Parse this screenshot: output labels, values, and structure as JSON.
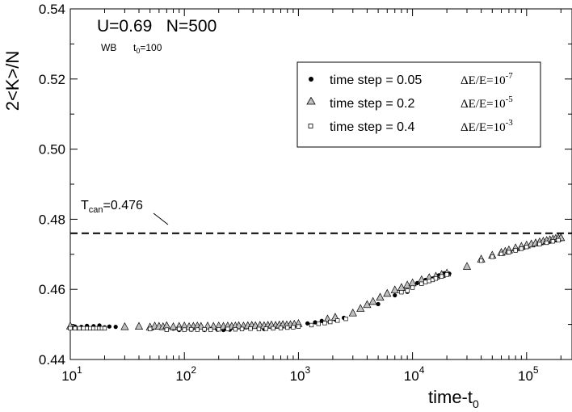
{
  "chart_data": {
    "type": "scatter",
    "xlabel": "time-t",
    "xlabel_sub": "0",
    "ylabel": "2<K>/N",
    "xscale": "log",
    "xlim": [
      10,
      250000
    ],
    "ylim": [
      0.44,
      0.54
    ],
    "x_ticks": [
      {
        "value": 10,
        "base": "10",
        "exp": "1"
      },
      {
        "value": 100,
        "base": "10",
        "exp": "2"
      },
      {
        "value": 1000,
        "base": "10",
        "exp": "3"
      },
      {
        "value": 10000,
        "base": "10",
        "exp": "4"
      },
      {
        "value": 100000,
        "base": "10",
        "exp": "5"
      }
    ],
    "y_ticks": [
      {
        "value": 0.44,
        "label": "0.44"
      },
      {
        "value": 0.46,
        "label": "0.46"
      },
      {
        "value": 0.48,
        "label": "0.48"
      },
      {
        "value": 0.5,
        "label": "0.50"
      },
      {
        "value": 0.52,
        "label": "0.52"
      },
      {
        "value": 0.54,
        "label": "0.54"
      }
    ],
    "grid": false,
    "legend_position": "top-right",
    "annotations": {
      "params": "U=0.69   N=500",
      "wb": "WB",
      "t0_base": "t",
      "t0_sub": "0",
      "t0_value": "=100",
      "tcan_base": "T",
      "tcan_sub": "can",
      "tcan_value": "=0.476"
    },
    "reference_line": {
      "y": 0.476,
      "style": "dashed"
    },
    "series": [
      {
        "name": "time step = 0.05",
        "de_base": "ΔE/E=10",
        "de_exp": "-7",
        "marker": "filled-circle",
        "color": "#000000",
        "x": [
          11,
          12.5,
          14,
          16,
          18,
          20,
          22,
          25,
          70,
          80,
          90,
          100,
          115,
          130,
          150,
          170,
          195,
          220,
          250,
          500,
          1200,
          1400,
          1600,
          1800,
          2100,
          2500,
          5000,
          7000,
          9000,
          11000,
          13000,
          15000,
          17000,
          19000,
          21000
        ],
        "y": [
          0.4494,
          0.4493,
          0.4496,
          0.4495,
          0.4497,
          0.4492,
          0.4494,
          0.4493,
          0.4485,
          0.4488,
          0.4484,
          0.4487,
          0.4485,
          0.4486,
          0.4484,
          0.4486,
          0.4485,
          0.4484,
          0.4485,
          0.4487,
          0.4503,
          0.4506,
          0.451,
          0.4511,
          0.4514,
          0.4519,
          0.4558,
          0.4583,
          0.4593,
          0.4618,
          0.4627,
          0.4631,
          0.464,
          0.4646,
          0.4645
        ]
      },
      {
        "name": "time step = 0.2",
        "de_base": "ΔE/E=10",
        "de_exp": "-5",
        "marker": "triangle",
        "color": "#a9a9a9",
        "x": [
          10,
          30,
          40,
          50,
          55,
          60,
          65,
          70,
          80,
          90,
          100,
          110,
          120,
          130,
          140,
          160,
          180,
          200,
          220,
          240,
          260,
          280,
          300,
          330,
          360,
          390,
          420,
          460,
          500,
          540,
          580,
          630,
          680,
          730,
          790,
          850,
          920,
          1000,
          1800,
          2100,
          3000,
          3500,
          4000,
          4500,
          5200,
          6000,
          7000,
          8000,
          9000,
          10000,
          12000,
          14000,
          16000,
          18000,
          20000,
          30000,
          40000,
          50000,
          60000,
          65000,
          70000,
          80000,
          90000,
          100000,
          110000,
          120000,
          130000,
          140000,
          150000,
          160000,
          170000,
          180000,
          190000,
          200000
        ],
        "y": [
          0.4495,
          0.4493,
          0.4494,
          0.4492,
          0.4495,
          0.4494,
          0.4493,
          0.4496,
          0.4493,
          0.4494,
          0.4495,
          0.4493,
          0.4494,
          0.4495,
          0.4494,
          0.4495,
          0.4494,
          0.4495,
          0.4494,
          0.4495,
          0.4494,
          0.4495,
          0.4496,
          0.4495,
          0.4496,
          0.4497,
          0.4496,
          0.4497,
          0.4496,
          0.4497,
          0.4498,
          0.4497,
          0.4498,
          0.4499,
          0.4498,
          0.4499,
          0.45,
          0.4502,
          0.4515,
          0.452,
          0.4532,
          0.4545,
          0.4556,
          0.4565,
          0.4577,
          0.4588,
          0.4598,
          0.4605,
          0.4612,
          0.4618,
          0.4627,
          0.4633,
          0.4637,
          0.4642,
          0.4646,
          0.4665,
          0.4686,
          0.4697,
          0.4705,
          0.4708,
          0.4712,
          0.4718,
          0.4722,
          0.4726,
          0.4729,
          0.4732,
          0.4735,
          0.4737,
          0.4739,
          0.4741,
          0.4743,
          0.4745,
          0.4746,
          0.4747
        ]
      },
      {
        "name": "time step = 0.4",
        "de_base": "ΔE/E=10",
        "de_exp": "-3",
        "marker": "open-square",
        "color": "#000000",
        "x": [
          10,
          11,
          12,
          13,
          14,
          15,
          16,
          17,
          18,
          19,
          20,
          50,
          70,
          90,
          100,
          115,
          130,
          150,
          170,
          200,
          240,
          280,
          320,
          380,
          450,
          520,
          600,
          700,
          800,
          900,
          1000,
          1300,
          1500,
          1700,
          1900,
          2200,
          2600,
          8000,
          9000,
          10000,
          12000,
          13000,
          14000,
          15000,
          16000,
          18000,
          20000,
          40000,
          50000,
          60000,
          70000,
          80000,
          90000,
          100000,
          130000,
          150000,
          170000,
          190000
        ],
        "y": [
          0.4489,
          0.4489,
          0.4489,
          0.4489,
          0.4489,
          0.4489,
          0.4489,
          0.4489,
          0.4489,
          0.4489,
          0.4489,
          0.4487,
          0.4485,
          0.4487,
          0.4485,
          0.4486,
          0.4485,
          0.4486,
          0.4485,
          0.4486,
          0.4487,
          0.4486,
          0.4487,
          0.4488,
          0.4487,
          0.4488,
          0.4489,
          0.449,
          0.4491,
          0.4492,
          0.4494,
          0.4498,
          0.4502,
          0.4504,
          0.4507,
          0.4511,
          0.4516,
          0.4592,
          0.4596,
          0.4605,
          0.4616,
          0.4621,
          0.4624,
          0.4627,
          0.4631,
          0.4637,
          0.4642,
          0.4682,
          0.4693,
          0.4701,
          0.4706,
          0.4711,
          0.4716,
          0.4721,
          0.4729,
          0.4733,
          0.4737,
          0.474
        ]
      }
    ]
  }
}
